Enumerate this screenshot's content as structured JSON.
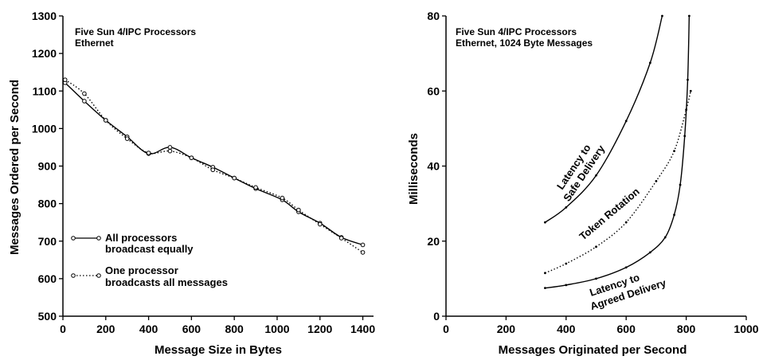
{
  "chart_data": [
    {
      "type": "line",
      "note_lines": [
        "Five Sun 4/IPC Processors",
        "Ethernet"
      ],
      "xlabel": "Message Size in Bytes",
      "ylabel": "Messages Ordered per Second",
      "xlim": [
        0,
        1450
      ],
      "ylim": [
        500,
        1300
      ],
      "xticks": [
        0,
        200,
        400,
        600,
        800,
        1000,
        1200,
        1400
      ],
      "yticks": [
        500,
        600,
        700,
        800,
        900,
        1000,
        1100,
        1200,
        1300
      ],
      "series": [
        {
          "legend_lines": [
            "All processors",
            "broadcast equally"
          ],
          "style": "solid",
          "x": [
            10,
            100,
            200,
            300,
            400,
            500,
            600,
            700,
            800,
            900,
            1024,
            1100,
            1200,
            1300,
            1400
          ],
          "y": [
            1122,
            1073,
            1022,
            978,
            933,
            950,
            922,
            897,
            868,
            840,
            810,
            778,
            748,
            710,
            690
          ]
        },
        {
          "legend_lines": [
            "One processor",
            "broadcasts all messages"
          ],
          "style": "dotted",
          "x": [
            10,
            100,
            200,
            300,
            400,
            500,
            600,
            700,
            800,
            900,
            1024,
            1100,
            1200,
            1300,
            1400
          ],
          "y": [
            1130,
            1093,
            1022,
            973,
            935,
            940,
            922,
            890,
            868,
            843,
            815,
            783,
            745,
            708,
            670
          ]
        }
      ]
    },
    {
      "type": "line",
      "note_lines": [
        "Five Sun 4/IPC Processors",
        "Ethernet, 1024 Byte Messages"
      ],
      "xlabel": "Messages Originated per Second",
      "ylabel": "Milliseconds",
      "xlim": [
        0,
        1000
      ],
      "ylim": [
        0,
        80
      ],
      "xticks": [
        0,
        200,
        400,
        600,
        800,
        1000
      ],
      "yticks": [
        0,
        20,
        40,
        60,
        80
      ],
      "series": [
        {
          "curve_label_lines": [
            "Latency to",
            "Safe Delivery"
          ],
          "style": "solid",
          "x": [
            330,
            400,
            500,
            600,
            680,
            720
          ],
          "y": [
            25,
            29,
            37.5,
            52,
            67.5,
            80
          ]
        },
        {
          "curve_label_lines": [
            "Token Rotation"
          ],
          "style": "dotted",
          "x": [
            330,
            400,
            500,
            600,
            700,
            760,
            800,
            815
          ],
          "y": [
            11.5,
            14,
            18.5,
            25,
            36,
            44,
            55,
            60
          ]
        },
        {
          "curve_label_lines": [
            "Latency to",
            "Agreed Delivery"
          ],
          "style": "solid",
          "x": [
            330,
            400,
            500,
            600,
            680,
            730,
            760,
            780,
            795,
            805,
            810
          ],
          "y": [
            7.5,
            8.3,
            10,
            13,
            17,
            21,
            27,
            35,
            48,
            63,
            80
          ]
        }
      ]
    }
  ]
}
